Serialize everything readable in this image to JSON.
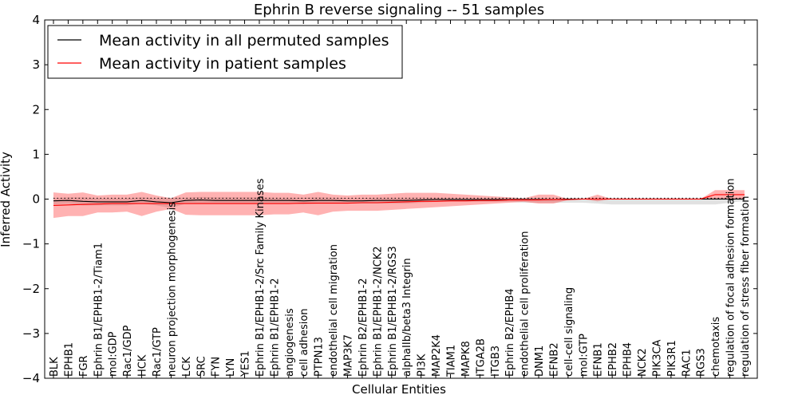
{
  "chart_data": {
    "type": "line",
    "title": "Ephrin B reverse signaling -- 51 samples",
    "xlabel": "Cellular Entities",
    "ylabel": "Inferred Activity",
    "ylim": [
      -4,
      4
    ],
    "yticks": [
      4,
      3,
      2,
      1,
      0,
      -1,
      -2,
      -3,
      -4
    ],
    "ytick_labels": [
      "4",
      "3",
      "2",
      "1",
      "0",
      "−1",
      "−2",
      "−3",
      "−4"
    ],
    "legend_position": "top-left",
    "categories": [
      "BLK",
      "EPHB1",
      "FGR",
      "Ephrin B1/EPHB1-2/Tiam1",
      "mol:GDP",
      "Rac1/GDP",
      "HCK",
      "Rac1/GTP",
      "neuron projection morphogenesis",
      "LCK",
      "SRC",
      "FYN",
      "LYN",
      "YES1",
      "Ephrin B1/EPHB1-2/Src Family Kinases",
      "Ephrin B1/EPHB1-2",
      "angiogenesis",
      "cell adhesion",
      "PTPN13",
      "endothelial cell migration",
      "MAP3K7",
      "Ephrin B2/EPHB1-2",
      "Ephrin B1/EPHB1-2/NCK2",
      "Ephrin B1/EPHB1-2/RGS3",
      "alphaIIb/beta3 Integrin",
      "PI3K",
      "MAP2K4",
      "TIAM1",
      "MAPK8",
      "ITGA2B",
      "ITGB3",
      "Ephrin B2/EPHB4",
      "endothelial cell proliferation",
      "DNM1",
      "EFNB2",
      "cell-cell signaling",
      "mol:GTP",
      "EFNB1",
      "EPHB2",
      "EPHB4",
      "NCK2",
      "PIK3CA",
      "PIK3R1",
      "RAC1",
      "RGS3",
      "chemotaxis",
      "regulation of focal adhesion formation",
      "regulation of stress fiber formation"
    ],
    "series": [
      {
        "name": "Mean activity in all permuted samples",
        "color": "#000000",
        "values": [
          -0.04,
          -0.03,
          -0.05,
          -0.06,
          -0.06,
          -0.06,
          -0.03,
          -0.06,
          -0.08,
          -0.03,
          -0.02,
          -0.03,
          -0.03,
          -0.03,
          -0.03,
          -0.03,
          -0.03,
          -0.04,
          -0.03,
          -0.03,
          -0.04,
          -0.04,
          -0.03,
          -0.03,
          -0.03,
          -0.02,
          -0.01,
          -0.01,
          -0.01,
          -0.01,
          -0.01,
          -0.01,
          -0.01,
          -0.01,
          -0.01,
          0.0,
          0.0,
          0.0,
          0.0,
          0.0,
          0.0,
          0.0,
          0.0,
          0.0,
          0.0,
          0.0,
          0.0,
          0.0
        ],
        "band_upper": [
          0.02,
          0.04,
          0.04,
          0.02,
          0.02,
          0.02,
          0.04,
          0.02,
          0.03,
          0.03,
          0.05,
          0.04,
          0.04,
          0.04,
          0.04,
          0.03,
          0.03,
          0.03,
          0.04,
          0.03,
          0.02,
          0.02,
          0.03,
          0.03,
          0.03,
          0.03,
          0.03,
          0.03,
          0.02,
          0.02,
          0.02,
          0.02,
          0.02,
          0.02,
          0.02,
          0.03,
          0.03,
          0.03,
          0.03,
          0.03,
          0.03,
          0.03,
          0.03,
          0.03,
          0.03,
          0.03,
          0.03,
          0.03
        ],
        "band_lower": [
          -0.12,
          -0.1,
          -0.14,
          -0.14,
          -0.14,
          -0.14,
          -0.1,
          -0.14,
          -0.2,
          -0.1,
          -0.09,
          -0.1,
          -0.1,
          -0.1,
          -0.1,
          -0.09,
          -0.09,
          -0.12,
          -0.1,
          -0.1,
          -0.1,
          -0.1,
          -0.1,
          -0.1,
          -0.1,
          -0.08,
          -0.06,
          -0.06,
          -0.06,
          -0.06,
          -0.06,
          -0.06,
          -0.08,
          -0.08,
          -0.08,
          -0.08,
          -0.08,
          -0.1,
          -0.12,
          -0.12,
          -0.12,
          -0.12,
          -0.12,
          -0.12,
          -0.12,
          -0.12,
          -0.08,
          -0.04
        ]
      },
      {
        "name": "Mean activity in patient samples",
        "color": "#ff0000",
        "values": [
          -0.14,
          -0.13,
          -0.12,
          -0.11,
          -0.1,
          -0.1,
          -0.1,
          -0.1,
          -0.1,
          -0.1,
          -0.1,
          -0.1,
          -0.1,
          -0.1,
          -0.1,
          -0.1,
          -0.1,
          -0.09,
          -0.09,
          -0.09,
          -0.09,
          -0.08,
          -0.08,
          -0.07,
          -0.06,
          -0.05,
          -0.05,
          -0.04,
          -0.04,
          -0.03,
          -0.03,
          -0.02,
          -0.02,
          -0.02,
          -0.01,
          -0.01,
          0.0,
          0.0,
          0.0,
          0.0,
          0.0,
          0.0,
          0.0,
          0.0,
          0.0,
          0.1,
          0.1,
          0.1
        ],
        "band_upper": [
          0.15,
          0.12,
          0.15,
          0.08,
          0.1,
          0.1,
          0.16,
          0.08,
          0.02,
          0.15,
          0.16,
          0.16,
          0.16,
          0.16,
          0.16,
          0.14,
          0.14,
          0.1,
          0.16,
          0.1,
          0.08,
          0.1,
          0.1,
          0.12,
          0.14,
          0.14,
          0.14,
          0.12,
          0.1,
          0.08,
          0.06,
          0.04,
          0.02,
          0.1,
          0.1,
          0.0,
          0.0,
          0.1,
          0.0,
          0.0,
          0.0,
          0.0,
          0.0,
          0.0,
          0.0,
          0.2,
          0.2,
          0.2
        ],
        "band_lower": [
          -0.42,
          -0.38,
          -0.38,
          -0.3,
          -0.3,
          -0.28,
          -0.38,
          -0.28,
          -0.22,
          -0.35,
          -0.36,
          -0.36,
          -0.36,
          -0.36,
          -0.36,
          -0.34,
          -0.34,
          -0.3,
          -0.36,
          -0.28,
          -0.26,
          -0.26,
          -0.26,
          -0.24,
          -0.22,
          -0.2,
          -0.18,
          -0.16,
          -0.14,
          -0.12,
          -0.1,
          -0.08,
          -0.06,
          -0.1,
          -0.1,
          -0.02,
          0.0,
          -0.05,
          0.0,
          0.0,
          0.0,
          0.0,
          0.0,
          0.0,
          0.0,
          0.0,
          0.0,
          0.0
        ]
      }
    ],
    "baseline_dotted": 0.02
  }
}
